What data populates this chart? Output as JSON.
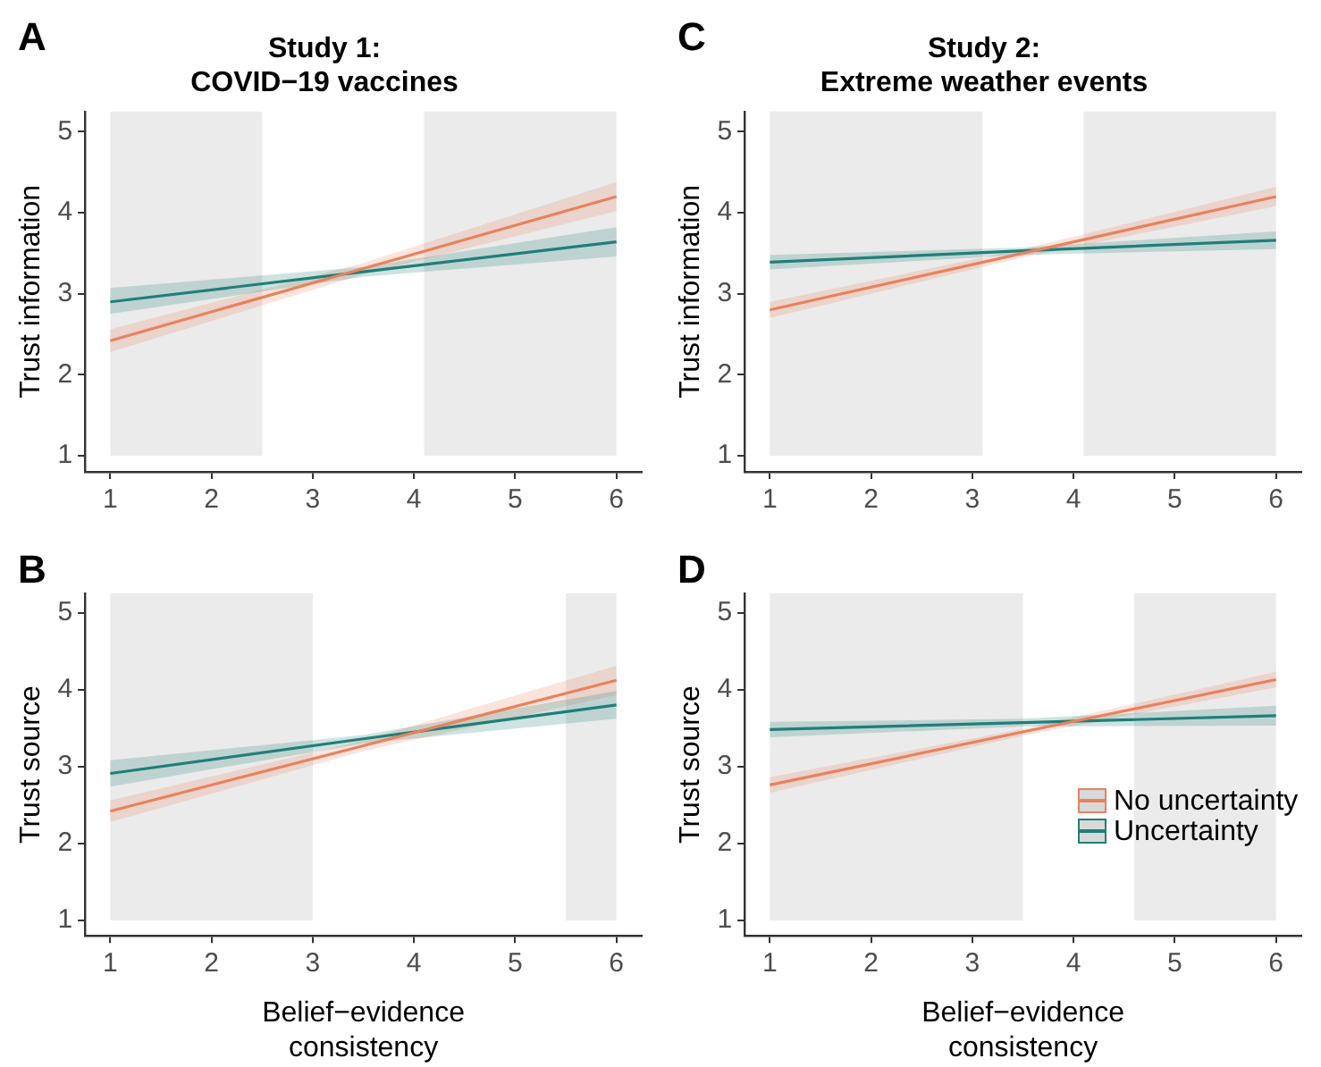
{
  "chart_data": [
    {
      "type": "line",
      "title": "Study 1:\nCOVID−19 vaccines",
      "ylabel": "Trust information",
      "annotations": [
        "A"
      ],
      "xlim": [
        0.75,
        6.25
      ],
      "xticks": [
        1,
        2,
        3,
        4,
        5,
        6
      ],
      "ylim": [
        0.8,
        5.25
      ],
      "yticks": [
        1,
        2,
        3,
        4,
        5
      ],
      "bands": [
        {
          "axis": "x",
          "from": 1,
          "to": 2.5,
          "color": "#ebebeb"
        },
        {
          "axis": "x",
          "from": 4.1,
          "to": 6,
          "color": "#ebebeb"
        }
      ],
      "series": [
        {
          "color": "#e8825f",
          "x": [
            1,
            3.5,
            6
          ],
          "values": [
            2.42,
            3.31,
            4.2
          ],
          "lower": [
            2.28,
            3.24,
            4.02
          ],
          "upper": [
            2.56,
            3.38,
            4.38
          ]
        },
        {
          "color": "#1f7f78",
          "x": [
            1,
            3.5,
            6
          ],
          "values": [
            2.9,
            3.27,
            3.64
          ],
          "lower": [
            2.75,
            3.21,
            3.46
          ],
          "upper": [
            3.07,
            3.33,
            3.82
          ]
        }
      ]
    },
    {
      "type": "line",
      "title": "Study 2:\nExtreme weather events",
      "ylabel": "Trust information",
      "annotations": [
        "C"
      ],
      "xlim": [
        0.75,
        6.25
      ],
      "xticks": [
        1,
        2,
        3,
        4,
        5,
        6
      ],
      "ylim": [
        0.8,
        5.25
      ],
      "yticks": [
        1,
        2,
        3,
        4,
        5
      ],
      "bands": [
        {
          "axis": "x",
          "from": 1,
          "to": 3.1,
          "color": "#ebebeb"
        },
        {
          "axis": "x",
          "from": 4.1,
          "to": 6,
          "color": "#ebebeb"
        }
      ],
      "series": [
        {
          "color": "#e8825f",
          "x": [
            1,
            3.5,
            6
          ],
          "values": [
            2.8,
            3.5,
            4.2
          ],
          "lower": [
            2.7,
            3.45,
            4.08
          ],
          "upper": [
            2.9,
            3.55,
            4.32
          ]
        },
        {
          "color": "#1f7f78",
          "x": [
            1,
            3.5,
            6
          ],
          "values": [
            3.39,
            3.53,
            3.66
          ],
          "lower": [
            3.3,
            3.48,
            3.55
          ],
          "upper": [
            3.48,
            3.57,
            3.77
          ]
        }
      ]
    },
    {
      "type": "line",
      "xlabel": "Belief−evidence consistency",
      "ylabel": "Trust source",
      "annotations": [
        "B"
      ],
      "xlim": [
        0.75,
        6.25
      ],
      "xticks": [
        1,
        2,
        3,
        4,
        5,
        6
      ],
      "ylim": [
        0.8,
        5.25
      ],
      "yticks": [
        1,
        2,
        3,
        4,
        5
      ],
      "bands": [
        {
          "axis": "x",
          "from": 1,
          "to": 3,
          "color": "#ebebeb"
        },
        {
          "axis": "x",
          "from": 5.5,
          "to": 6,
          "color": "#ebebeb"
        }
      ],
      "series": [
        {
          "color": "#e8825f",
          "x": [
            1,
            3.5,
            6
          ],
          "values": [
            2.42,
            3.27,
            4.12
          ],
          "lower": [
            2.28,
            3.2,
            3.93
          ],
          "upper": [
            2.56,
            3.34,
            4.31
          ]
        },
        {
          "color": "#1f7f78",
          "x": [
            1,
            3.5,
            6
          ],
          "values": [
            2.91,
            3.36,
            3.8
          ],
          "lower": [
            2.74,
            3.3,
            3.62
          ],
          "upper": [
            3.08,
            3.41,
            3.98
          ]
        }
      ]
    },
    {
      "type": "line",
      "xlabel": "Belief−evidence consistency",
      "ylabel": "Trust source",
      "annotations": [
        "D"
      ],
      "xlim": [
        0.75,
        6.25
      ],
      "xticks": [
        1,
        2,
        3,
        4,
        5,
        6
      ],
      "ylim": [
        0.8,
        5.25
      ],
      "yticks": [
        1,
        2,
        3,
        4,
        5
      ],
      "legend": "bottom right",
      "bands": [
        {
          "axis": "x",
          "from": 1,
          "to": 3.5,
          "color": "#ebebeb"
        },
        {
          "axis": "x",
          "from": 4.6,
          "to": 6,
          "color": "#ebebeb"
        }
      ],
      "series": [
        {
          "name": "No uncertainty",
          "color": "#e8825f",
          "x": [
            1,
            3.5,
            6
          ],
          "values": [
            2.76,
            3.45,
            4.13
          ],
          "lower": [
            2.66,
            3.4,
            4.03
          ],
          "upper": [
            2.86,
            3.49,
            4.23
          ]
        },
        {
          "name": "Uncertainty",
          "color": "#1f7f78",
          "x": [
            1,
            3.5,
            6
          ],
          "values": [
            3.48,
            3.57,
            3.66
          ],
          "lower": [
            3.38,
            3.52,
            3.53
          ],
          "upper": [
            3.58,
            3.62,
            3.79
          ]
        }
      ]
    }
  ]
}
